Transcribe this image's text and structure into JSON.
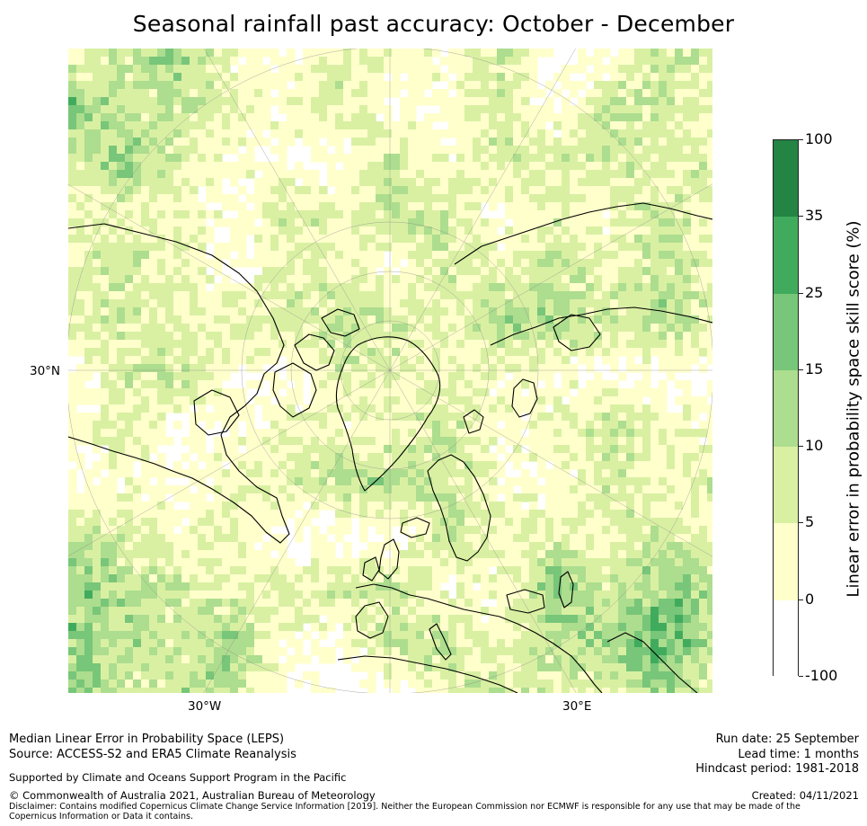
{
  "title": "Seasonal rainfall past accuracy: October - December",
  "map": {
    "labels": {
      "latitude": "30°N",
      "longitude_west": "30°W",
      "longitude_east": "30°E"
    },
    "palette": {
      "c0": "#ffffff",
      "c5": "#ffffcc",
      "c10": "#d9f0a3",
      "c15": "#addd8e",
      "c25": "#78c679",
      "c35": "#41ab5d",
      "c100": "#238443",
      "coast": "#000000",
      "grid": "#888888"
    }
  },
  "colorbar": {
    "title": "Linear error in probability space skill score (%)",
    "ticks": [
      "100",
      "35",
      "25",
      "15",
      "10",
      "5",
      "0",
      "-100"
    ],
    "segments": [
      {
        "label": "35 to 100",
        "color": "#238443"
      },
      {
        "label": "25 to 35",
        "color": "#41ab5d"
      },
      {
        "label": "15 to 25",
        "color": "#78c679"
      },
      {
        "label": "10 to 15",
        "color": "#addd8e"
      },
      {
        "label": "5 to 10",
        "color": "#d9f0a3"
      },
      {
        "label": "0 to 5",
        "color": "#ffffcc"
      },
      {
        "label": "-100 to 0",
        "color": "#ffffff"
      }
    ]
  },
  "footer": {
    "metric": "Median Linear Error in Probability Space (LEPS)",
    "source": "Source: ACCESS-S2 and ERA5 Climate Reanalysis",
    "support": "Supported by Climate and Oceans Support Program in the Pacific",
    "copyright": "© Commonwealth of Australia 2021, Australian Bureau of Meteorology",
    "disclaimer": "Disclaimer: Contains modified Copernicus Climate Change Service Information [2019]. Neither the European Commission nor ECMWF is responsible for any use that may be made of the Copernicus Information or Data it contains.",
    "run_date": "Run date: 25 September",
    "lead_time": "Lead time: 1 months",
    "hindcast": "Hindcast period: 1981-2018",
    "created": "Created: 04/11/2021"
  }
}
